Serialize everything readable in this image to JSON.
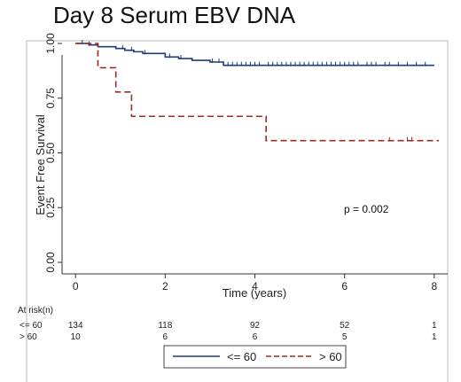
{
  "chart_data": {
    "type": "line",
    "title": "Day 8 Serum EBV DNA",
    "xlabel": "Time (years)",
    "ylabel": "Event Free Survival",
    "xlim": [
      -0.3,
      8.3
    ],
    "ylim": [
      0,
      1
    ],
    "x_ticks": [
      "0",
      "2",
      "4",
      "6",
      "8"
    ],
    "y_ticks": [
      "0.00",
      "0.25",
      "0.50",
      "0.75",
      "1.00"
    ],
    "grid": false,
    "legend": "bottom",
    "annotation": "p = 0.002",
    "series": [
      {
        "name": "<= 60",
        "color": "#1f3c7a",
        "style": "solid",
        "x": [
          0,
          0.3,
          0.5,
          0.9,
          1.1,
          1.3,
          1.5,
          2.0,
          2.3,
          2.6,
          3.0,
          3.3,
          8.0
        ],
        "y": [
          1.0,
          0.993,
          0.985,
          0.977,
          0.969,
          0.962,
          0.954,
          0.938,
          0.931,
          0.923,
          0.915,
          0.9,
          0.9
        ],
        "censor_x": [
          0.15,
          0.3,
          1.05,
          1.25,
          1.55,
          2.1,
          2.35,
          3.05,
          3.2,
          3.4,
          3.5,
          3.6,
          3.7,
          3.8,
          3.9,
          4.0,
          4.1,
          4.3,
          4.4,
          4.5,
          4.6,
          4.7,
          4.8,
          4.9,
          5.0,
          5.1,
          5.2,
          5.3,
          5.4,
          5.5,
          5.6,
          5.7,
          5.8,
          5.9,
          6.0,
          6.1,
          6.2,
          6.3,
          6.5,
          6.6,
          6.7,
          6.9,
          7.0,
          7.2,
          7.4,
          7.6,
          7.8
        ]
      },
      {
        "name": "> 60",
        "color": "#9b2d20",
        "style": "dashed",
        "x": [
          0,
          0.5,
          0.9,
          1.25,
          4.25,
          8.1
        ],
        "y": [
          1.0,
          0.889,
          0.778,
          0.667,
          0.556,
          0.556
        ],
        "censor_x": [
          7.0,
          7.4,
          7.5
        ]
      }
    ]
  },
  "risk_table": {
    "header": "At risk(n)",
    "x": [
      0,
      2,
      4,
      6,
      8
    ],
    "rows": [
      {
        "label": "<= 60",
        "values": [
          "134",
          "118",
          "92",
          "52",
          "1"
        ]
      },
      {
        "label": "> 60",
        "values": [
          "10",
          "6",
          "6",
          "5",
          "1"
        ]
      }
    ]
  }
}
